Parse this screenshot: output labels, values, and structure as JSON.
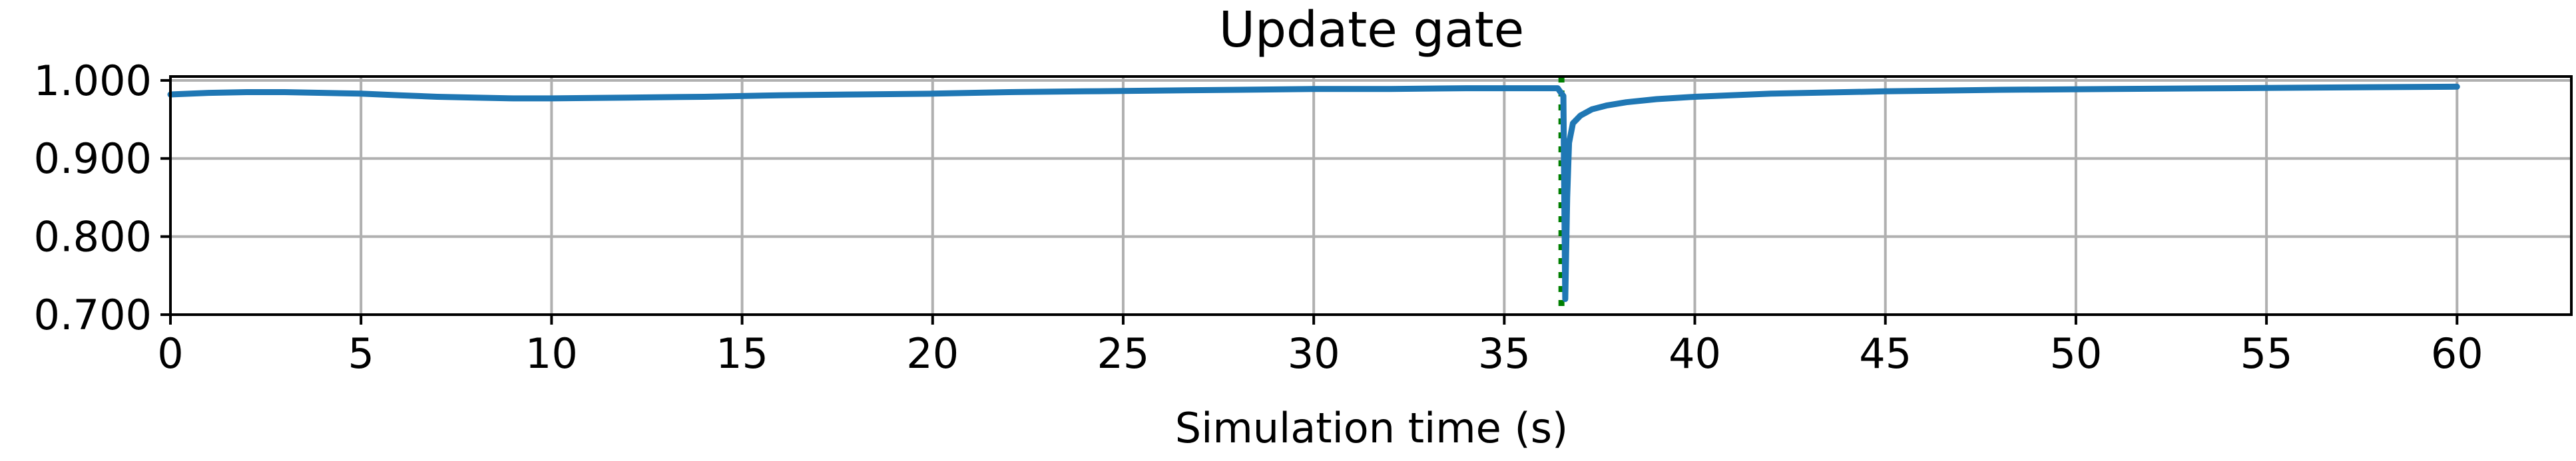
{
  "chart_data": {
    "type": "line",
    "title": "Update gate",
    "xlabel": "Simulation time (s)",
    "ylabel": "",
    "xlim": [
      0,
      63
    ],
    "ylim": [
      0.7,
      1.005
    ],
    "xticks": [
      0,
      5,
      10,
      15,
      20,
      25,
      30,
      35,
      40,
      45,
      50,
      55,
      60
    ],
    "xtick_labels": [
      "0",
      "5",
      "10",
      "15",
      "20",
      "25",
      "30",
      "35",
      "40",
      "45",
      "50",
      "55",
      "60"
    ],
    "yticks": [
      0.7,
      0.8,
      0.9,
      1.0
    ],
    "ytick_labels": [
      "0.700",
      "0.800",
      "0.900",
      "1.000"
    ],
    "grid": true,
    "series": [
      {
        "color": "#1f77b4",
        "x": [
          0,
          1,
          2,
          3,
          4,
          5,
          6,
          7,
          8,
          9,
          10,
          12,
          14,
          16,
          18,
          20,
          22,
          24,
          26,
          28,
          30,
          32,
          34,
          35,
          36,
          36.4,
          36.55,
          36.6,
          36.65,
          36.7,
          36.8,
          37,
          37.3,
          37.7,
          38.2,
          39,
          40,
          42,
          45,
          48,
          51,
          54,
          57,
          60
        ],
        "y": [
          0.982,
          0.984,
          0.985,
          0.985,
          0.984,
          0.983,
          0.981,
          0.979,
          0.978,
          0.977,
          0.977,
          0.978,
          0.979,
          0.981,
          0.982,
          0.983,
          0.985,
          0.986,
          0.987,
          0.988,
          0.989,
          0.989,
          0.99,
          0.99,
          0.99,
          0.99,
          0.98,
          0.72,
          0.85,
          0.92,
          0.945,
          0.955,
          0.963,
          0.968,
          0.972,
          0.976,
          0.979,
          0.983,
          0.986,
          0.988,
          0.989,
          0.99,
          0.991,
          0.992
        ]
      }
    ],
    "vertical_markers": [
      {
        "x": 36.5,
        "color": "#007f00",
        "style": "dotted"
      }
    ]
  }
}
